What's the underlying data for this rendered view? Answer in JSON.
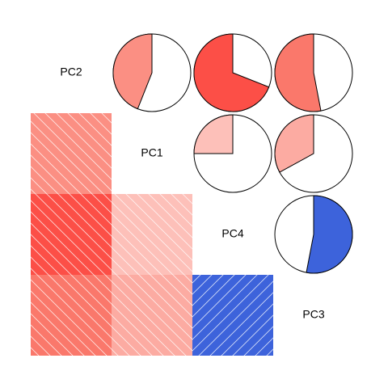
{
  "chart_data": {
    "type": "corrgram",
    "variables": [
      "PC2",
      "PC1",
      "PC4",
      "PC3"
    ],
    "correlations": [
      [
        null,
        -0.44,
        -0.69,
        -0.53
      ],
      [
        -0.44,
        null,
        -0.25,
        -0.33
      ],
      [
        -0.69,
        -0.25,
        null,
        0.53
      ],
      [
        -0.53,
        -0.33,
        0.53,
        null
      ]
    ],
    "colors": [
      "#ff0000",
      "#fa8072",
      "#ffffff",
      "#4169e1",
      "#000080"
    ]
  }
}
